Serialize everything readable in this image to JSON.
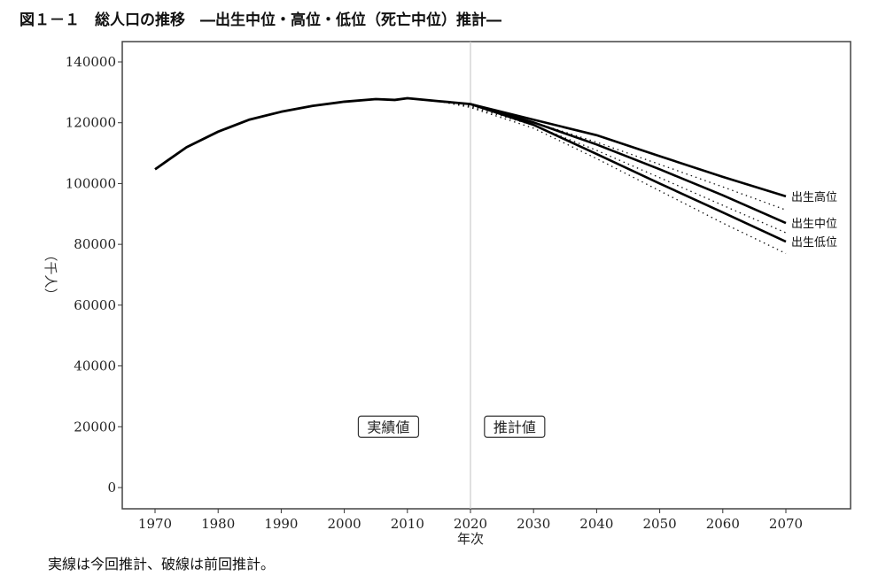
{
  "title": "図１－１　総人口の推移　―出生中位・高位・低位（死亡中位）推計―",
  "note": "実線は今回推計、破線は前回推計。",
  "chart_data": {
    "type": "line",
    "title": "図１－１　総人口の推移　―出生中位・高位・低位（死亡中位）推計―",
    "xlabel": "年次",
    "ylabel": "（千人）",
    "xlim": [
      1965,
      2080
    ],
    "ylim": [
      -7000,
      147000
    ],
    "xticks": [
      1970,
      1980,
      1990,
      2000,
      2010,
      2020,
      2030,
      2040,
      2050,
      2060,
      2070
    ],
    "yticks": [
      0,
      20000,
      40000,
      60000,
      80000,
      100000,
      120000,
      140000
    ],
    "grid": false,
    "divider_year": 2020,
    "annotations": [
      {
        "text": "実績値",
        "x": 2007,
        "y": 20000
      },
      {
        "text": "推計値",
        "x": 2027,
        "y": 20000
      }
    ],
    "actual": {
      "x": [
        1970,
        1972,
        1975,
        1980,
        1985,
        1990,
        1995,
        2000,
        2005,
        2008,
        2010,
        2015,
        2020
      ],
      "y": [
        104665,
        107600,
        111940,
        117060,
        121049,
        123611,
        125570,
        126926,
        127768,
        127500,
        128057,
        127095,
        126146
      ]
    },
    "series": [
      {
        "name": "出生高位",
        "style": "solid",
        "x": [
          2020,
          2030,
          2040,
          2050,
          2060,
          2070
        ],
        "y": [
          126146,
          121000,
          115900,
          109000,
          102200,
          95800
        ]
      },
      {
        "name": "出生中位",
        "style": "solid",
        "x": [
          2020,
          2030,
          2040,
          2050,
          2060,
          2070
        ],
        "y": [
          126146,
          120116,
          112837,
          104686,
          96148,
          86996
        ]
      },
      {
        "name": "出生低位",
        "style": "solid",
        "x": [
          2020,
          2030,
          2040,
          2050,
          2060,
          2070
        ],
        "y": [
          126146,
          119300,
          109700,
          100000,
          90500,
          80900
        ]
      },
      {
        "style": "dotted",
        "x": [
          2015,
          2020,
          2030,
          2040,
          2050,
          2060,
          2070
        ],
        "y": [
          127095,
          125600,
          120200,
          113600,
          106300,
          98900,
          91300
        ]
      },
      {
        "style": "dotted",
        "x": [
          2015,
          2020,
          2030,
          2040,
          2050,
          2060,
          2070
        ],
        "y": [
          127095,
          125300,
          119125,
          110919,
          101923,
          92840,
          83800
        ]
      },
      {
        "style": "dotted",
        "x": [
          2015,
          2020,
          2030,
          2040,
          2050,
          2060,
          2070
        ],
        "y": [
          127095,
          125000,
          118200,
          108200,
          97600,
          87000,
          77000
        ]
      }
    ]
  }
}
